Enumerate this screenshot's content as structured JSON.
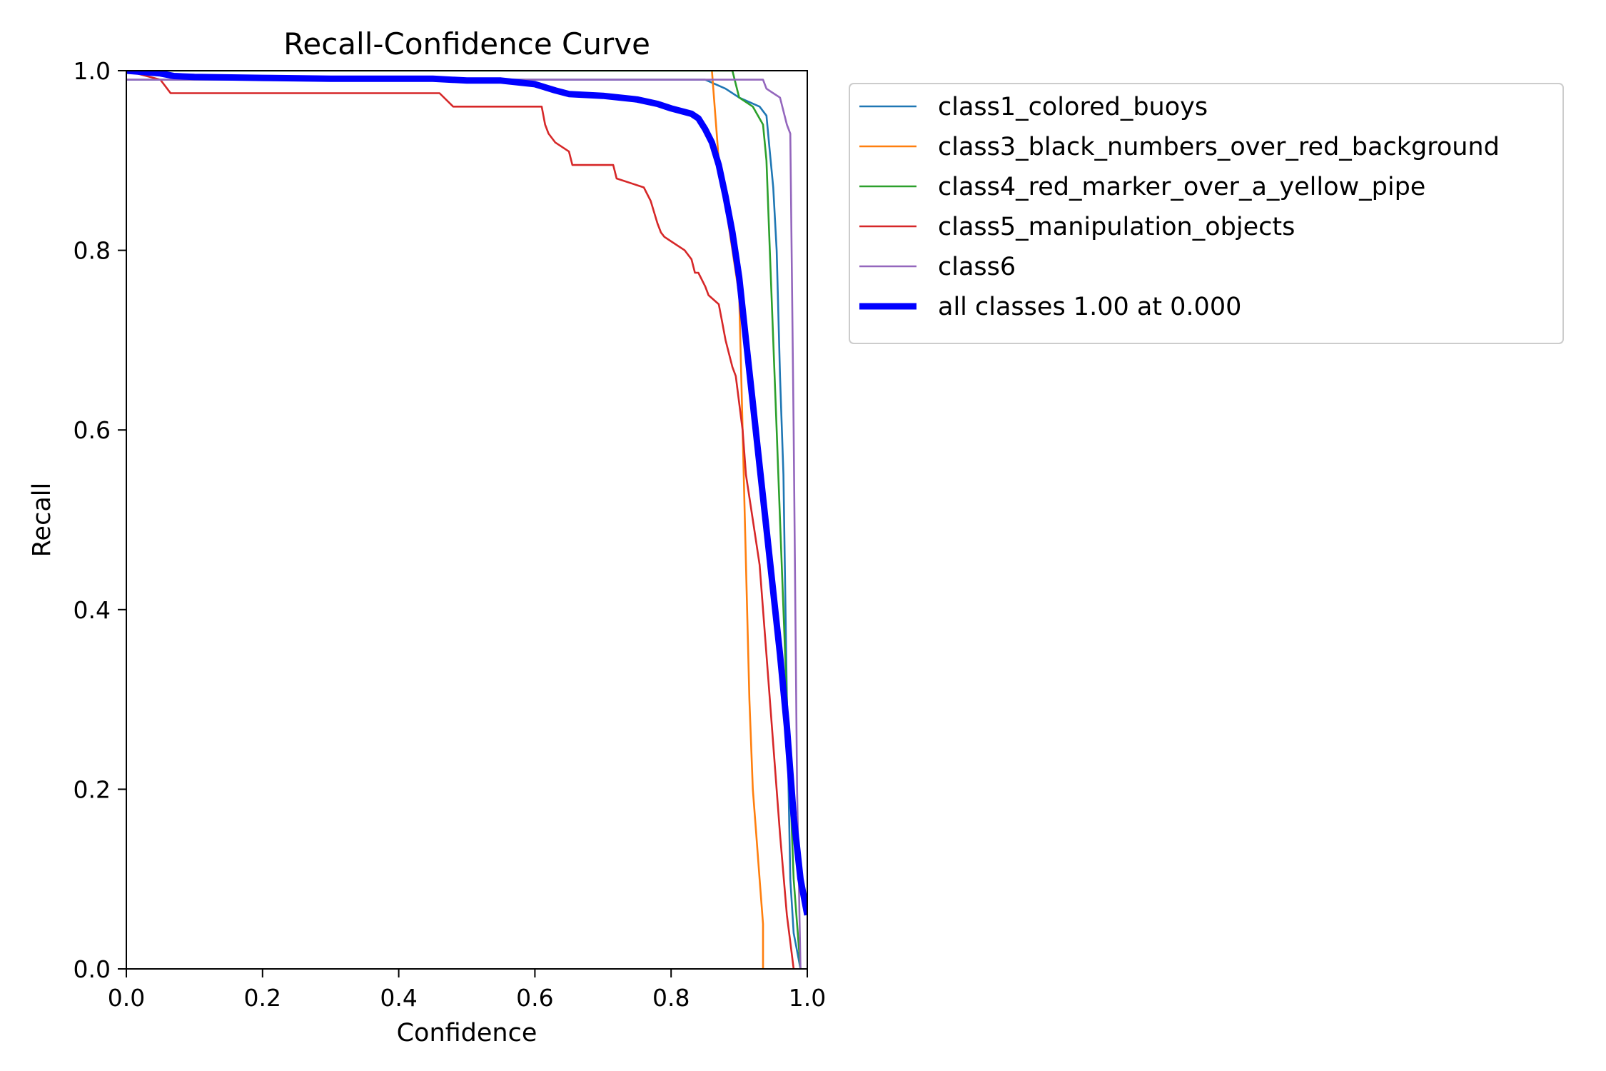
{
  "chart_data": {
    "type": "line",
    "title": "Recall-Confidence Curve",
    "xlabel": "Confidence",
    "ylabel": "Recall",
    "xlim": [
      0,
      1
    ],
    "ylim": [
      0,
      1
    ],
    "xticks": [
      "0.0",
      "0.2",
      "0.4",
      "0.6",
      "0.8",
      "1.0"
    ],
    "yticks": [
      "0.0",
      "0.2",
      "0.4",
      "0.6",
      "0.8",
      "1.0"
    ],
    "grid": false,
    "legend": "outside-upper-right",
    "series": [
      {
        "name": "class1_colored_buoys",
        "color": "#1f77b4",
        "x": [
          0.0,
          0.8,
          0.85,
          0.88,
          0.9,
          0.93,
          0.94,
          0.945,
          0.95,
          0.955,
          0.96,
          0.965,
          0.97,
          0.975,
          0.98,
          0.985,
          0.99
        ],
        "y": [
          0.99,
          0.99,
          0.99,
          0.98,
          0.97,
          0.96,
          0.95,
          0.91,
          0.87,
          0.8,
          0.66,
          0.55,
          0.3,
          0.1,
          0.04,
          0.02,
          0.0
        ]
      },
      {
        "name": "class3_black_numbers_over_red_background",
        "color": "#ff7f0e",
        "x": [
          0.86,
          0.865,
          0.87,
          0.88,
          0.89,
          0.9,
          0.905,
          0.91,
          0.915,
          0.92,
          0.925,
          0.93,
          0.935,
          0.935
        ],
        "y": [
          1.0,
          0.95,
          0.9,
          0.85,
          0.8,
          0.75,
          0.6,
          0.45,
          0.3,
          0.2,
          0.15,
          0.1,
          0.05,
          0.0
        ]
      },
      {
        "name": "class4_red_marker_over_a_yellow_pipe",
        "color": "#2ca02c",
        "x": [
          0.0,
          0.85,
          0.89,
          0.9,
          0.92,
          0.935,
          0.94,
          0.945,
          0.95,
          0.955,
          0.96,
          0.965,
          0.97,
          0.975,
          0.98,
          0.985,
          0.99
        ],
        "y": [
          1.0,
          1.0,
          1.0,
          0.97,
          0.96,
          0.94,
          0.9,
          0.8,
          0.7,
          0.6,
          0.5,
          0.4,
          0.3,
          0.2,
          0.1,
          0.05,
          0.0
        ]
      },
      {
        "name": "class5_manipulation_objects",
        "color": "#d62728",
        "x": [
          0.0,
          0.05,
          0.065,
          0.46,
          0.48,
          0.61,
          0.615,
          0.62,
          0.63,
          0.65,
          0.655,
          0.715,
          0.72,
          0.76,
          0.77,
          0.78,
          0.785,
          0.79,
          0.8,
          0.82,
          0.83,
          0.835,
          0.84,
          0.85,
          0.855,
          0.87,
          0.875,
          0.88,
          0.89,
          0.895,
          0.905,
          0.91,
          0.92,
          0.93,
          0.94,
          0.95,
          0.96,
          0.97,
          0.975,
          0.98
        ],
        "y": [
          1.0,
          0.99,
          0.975,
          0.975,
          0.96,
          0.96,
          0.94,
          0.93,
          0.92,
          0.91,
          0.895,
          0.895,
          0.88,
          0.87,
          0.855,
          0.83,
          0.82,
          0.815,
          0.81,
          0.8,
          0.79,
          0.775,
          0.775,
          0.76,
          0.75,
          0.74,
          0.72,
          0.7,
          0.67,
          0.66,
          0.6,
          0.55,
          0.5,
          0.45,
          0.35,
          0.25,
          0.15,
          0.06,
          0.03,
          0.0
        ]
      },
      {
        "name": "class6",
        "color": "#9467bd",
        "x": [
          0.0,
          0.93,
          0.935,
          0.94,
          0.95,
          0.96,
          0.965,
          0.97,
          0.975,
          0.98,
          0.985,
          0.99
        ],
        "y": [
          0.99,
          0.99,
          0.99,
          0.98,
          0.975,
          0.97,
          0.955,
          0.94,
          0.93,
          0.6,
          0.2,
          0.0
        ]
      },
      {
        "name": "all classes 1.00 at 0.000",
        "color": "#0000ff",
        "bold": true,
        "x": [
          0.0,
          0.05,
          0.07,
          0.1,
          0.2,
          0.3,
          0.45,
          0.5,
          0.55,
          0.6,
          0.63,
          0.65,
          0.7,
          0.75,
          0.78,
          0.8,
          0.83,
          0.84,
          0.85,
          0.86,
          0.87,
          0.88,
          0.89,
          0.9,
          0.91,
          0.92,
          0.93,
          0.94,
          0.95,
          0.96,
          0.97,
          0.98,
          0.99,
          1.0
        ],
        "y": [
          1.0,
          0.997,
          0.994,
          0.993,
          0.992,
          0.991,
          0.991,
          0.989,
          0.989,
          0.985,
          0.978,
          0.974,
          0.972,
          0.968,
          0.963,
          0.958,
          0.952,
          0.947,
          0.935,
          0.92,
          0.895,
          0.86,
          0.82,
          0.77,
          0.7,
          0.63,
          0.56,
          0.49,
          0.42,
          0.35,
          0.27,
          0.17,
          0.1,
          0.06
        ]
      }
    ]
  }
}
